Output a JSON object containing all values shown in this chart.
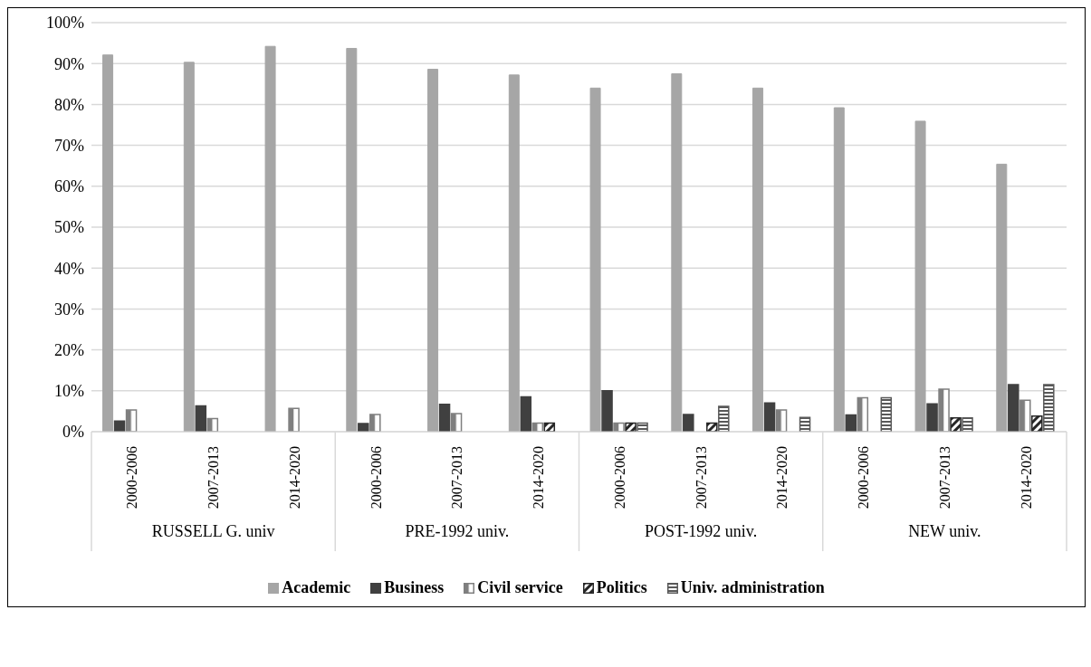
{
  "chart_data": {
    "type": "bar",
    "categories": [
      "2000-2006",
      "2007-2013",
      "2014-2020",
      "2000-2006",
      "2007-2013",
      "2014-2020",
      "2000-2006",
      "2007-2013",
      "2014-2020",
      "2000-2006",
      "2007-2013",
      "2014-2020"
    ],
    "annotations": [
      "RUSSELL G. univ",
      "PRE-1992 univ.",
      "POST-1992 univ.",
      "NEW univ."
    ],
    "series": [
      {
        "name": "Academic",
        "color": "#a6a6a6",
        "values": [
          92.1,
          90.3,
          94.2,
          93.7,
          88.6,
          87.2,
          84.0,
          87.5,
          84.0,
          79.2,
          75.9,
          65.4
        ]
      },
      {
        "name": "Business",
        "color": "#404040",
        "values": [
          2.6,
          6.3,
          null,
          2.0,
          6.7,
          8.5,
          10.0,
          4.2,
          7.0,
          4.1,
          6.8,
          11.5
        ]
      },
      {
        "name": "Civil service",
        "color": "#7f7f7f",
        "values": [
          5.3,
          3.2,
          5.7,
          4.2,
          4.4,
          2.1,
          2.1,
          null,
          5.3,
          8.3,
          10.4,
          7.7
        ]
      },
      {
        "name": "Politics",
        "color": "#262626",
        "values": [
          null,
          null,
          null,
          null,
          null,
          2.1,
          2.1,
          2.1,
          null,
          null,
          3.4,
          3.8
        ]
      },
      {
        "name": "Univ. administration",
        "color": "#595959",
        "values": [
          null,
          null,
          null,
          null,
          null,
          null,
          2.1,
          6.2,
          3.5,
          8.3,
          3.4,
          11.5
        ]
      }
    ],
    "ylim": [
      0,
      100
    ],
    "yticks": [
      {
        "value": 0,
        "label": "0%"
      },
      {
        "value": 10,
        "label": "10%"
      },
      {
        "value": 20,
        "label": "20%"
      },
      {
        "value": 30,
        "label": "30%"
      },
      {
        "value": 40,
        "label": "40%"
      },
      {
        "value": 50,
        "label": "50%"
      },
      {
        "value": 60,
        "label": "60%"
      },
      {
        "value": 70,
        "label": "70%"
      },
      {
        "value": 80,
        "label": "80%"
      },
      {
        "value": 90,
        "label": "90%"
      },
      {
        "value": 100,
        "label": "100%"
      }
    ],
    "grid": "y",
    "legend": "bottom"
  }
}
